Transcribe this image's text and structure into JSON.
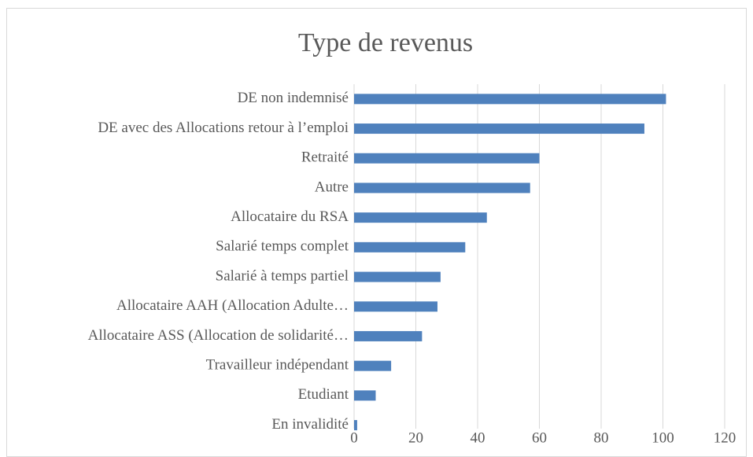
{
  "chart_data": {
    "type": "bar",
    "orientation": "horizontal",
    "title": "Type de revenus",
    "categories": [
      "DE non indemnisé",
      "DE avec des Allocations retour à l’emploi",
      "Retraité",
      "Autre",
      "Allocataire du RSA",
      "Salarié temps complet",
      "Salarié à temps partiel",
      "Allocataire AAH (Allocation Adulte…",
      "Allocataire ASS (Allocation de solidarité…",
      "Travailleur indépendant",
      "Etudiant",
      "En invalidité"
    ],
    "values": [
      101,
      94,
      60,
      57,
      43,
      36,
      28,
      27,
      22,
      12,
      7,
      1
    ],
    "color": "#4f81bd",
    "xlim": [
      0,
      120
    ],
    "xticks": [
      0,
      20,
      40,
      60,
      80,
      100,
      120
    ],
    "grid": true
  }
}
